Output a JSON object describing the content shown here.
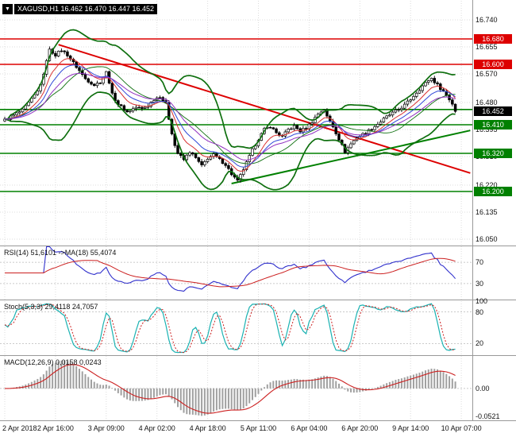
{
  "window": {
    "dropdown_icon": "▼"
  },
  "chart_data": [
    {
      "type": "candlestick",
      "symbol": "XAGUSD",
      "timeframe": "H1",
      "title": "XAGUSD,H1 16.462 16.470 16.447 16.452",
      "open": "16.462",
      "high": "16.470",
      "low": "16.447",
      "close": "16.452",
      "x_labels": [
        "2 Apr 2018",
        "2 Apr 16:00",
        "3 Apr 09:00",
        "4 Apr 02:00",
        "4 Apr 18:00",
        "5 Apr 11:00",
        "6 Apr 04:00",
        "6 Apr 20:00",
        "9 Apr 14:00",
        "10 Apr 07:00"
      ],
      "y_ticks": [
        "16.740",
        "16.655",
        "16.570",
        "16.480",
        "16.395",
        "16.310",
        "16.220",
        "16.135",
        "16.050"
      ],
      "y_range": [
        16.03,
        16.8
      ],
      "candle_count": 152,
      "noise_amplitude": 0.009,
      "wick_amplitude": 0.013,
      "current_price": 16.452,
      "current_price_text": "16.452",
      "close_path_anchors": [
        [
          0,
          16.425
        ],
        [
          3,
          16.44
        ],
        [
          6,
          16.455
        ],
        [
          9,
          16.49
        ],
        [
          11,
          16.515
        ],
        [
          13,
          16.565
        ],
        [
          14,
          16.615
        ],
        [
          15,
          16.645
        ],
        [
          17,
          16.63
        ],
        [
          19,
          16.645
        ],
        [
          21,
          16.63
        ],
        [
          23,
          16.605
        ],
        [
          25,
          16.58
        ],
        [
          27,
          16.555
        ],
        [
          30,
          16.535
        ],
        [
          32,
          16.545
        ],
        [
          34,
          16.575
        ],
        [
          35,
          16.545
        ],
        [
          36,
          16.505
        ],
        [
          38,
          16.475
        ],
        [
          41,
          16.45
        ],
        [
          44,
          16.465
        ],
        [
          46,
          16.46
        ],
        [
          48,
          16.47
        ],
        [
          50,
          16.49
        ],
        [
          52,
          16.5
        ],
        [
          54,
          16.475
        ],
        [
          55,
          16.43
        ],
        [
          56,
          16.385
        ],
        [
          57,
          16.345
        ],
        [
          58,
          16.32
        ],
        [
          60,
          16.3
        ],
        [
          62,
          16.325
        ],
        [
          64,
          16.305
        ],
        [
          66,
          16.28
        ],
        [
          68,
          16.305
        ],
        [
          70,
          16.315
        ],
        [
          72,
          16.3
        ],
        [
          74,
          16.285
        ],
        [
          76,
          16.255
        ],
        [
          78,
          16.232
        ],
        [
          79,
          16.25
        ],
        [
          81,
          16.29
        ],
        [
          83,
          16.33
        ],
        [
          85,
          16.365
        ],
        [
          87,
          16.395
        ],
        [
          89,
          16.405
        ],
        [
          91,
          16.385
        ],
        [
          93,
          16.372
        ],
        [
          95,
          16.395
        ],
        [
          97,
          16.405
        ],
        [
          99,
          16.39
        ],
        [
          101,
          16.4
        ],
        [
          103,
          16.42
        ],
        [
          105,
          16.445
        ],
        [
          107,
          16.458
        ],
        [
          108,
          16.435
        ],
        [
          110,
          16.405
        ],
        [
          112,
          16.365
        ],
        [
          114,
          16.325
        ],
        [
          116,
          16.35
        ],
        [
          118,
          16.37
        ],
        [
          120,
          16.38
        ],
        [
          122,
          16.392
        ],
        [
          124,
          16.405
        ],
        [
          126,
          16.42
        ],
        [
          128,
          16.435
        ],
        [
          130,
          16.447
        ],
        [
          132,
          16.458
        ],
        [
          134,
          16.472
        ],
        [
          136,
          16.49
        ],
        [
          138,
          16.512
        ],
        [
          140,
          16.532
        ],
        [
          142,
          16.55
        ],
        [
          143,
          16.556
        ],
        [
          145,
          16.535
        ],
        [
          147,
          16.515
        ],
        [
          149,
          16.49
        ],
        [
          151,
          16.462
        ],
        [
          152,
          16.452
        ]
      ],
      "levels": [
        {
          "price": 16.68,
          "label": "16.680",
          "color": "#dd0000"
        },
        {
          "price": 16.6,
          "label": "16.600",
          "color": "#dd0000"
        },
        {
          "price": 16.458,
          "label": "",
          "color": "#008000"
        },
        {
          "price": 16.41,
          "label": "16.410",
          "color": "#008000"
        },
        {
          "price": 16.32,
          "label": "16.320",
          "color": "#008000"
        },
        {
          "price": 16.2,
          "label": "16.200",
          "color": "#008000"
        }
      ],
      "trendlines": [
        {
          "from": [
            18,
            16.662
          ],
          "to": [
            156,
            16.258
          ],
          "color": "#dd0000",
          "width": 2
        },
        {
          "from": [
            76,
            16.225
          ],
          "to": [
            156,
            16.392
          ],
          "color": "#008000",
          "width": 2
        }
      ],
      "indicators_overlay": [
        {
          "name": "Bollinger Bands",
          "period": 20,
          "deviation": 2,
          "color": "#0e6f0e"
        },
        {
          "name": "MA fast",
          "period": 8,
          "color": "#d83030"
        },
        {
          "name": "MA mid",
          "period": 13,
          "color": "#3048d8"
        },
        {
          "name": "MA slow",
          "period": 21,
          "color": "#9030c0"
        }
      ]
    },
    {
      "type": "line",
      "name": "RSI",
      "label": "RSI(14) 51,6101  ->MA(18) 55,4074",
      "params": {
        "period": 14,
        "ma_period": 18
      },
      "current": {
        "rsi": "51,6101",
        "ma": "55,4074"
      },
      "y_ticks": [
        {
          "value": 70,
          "text": "70"
        },
        {
          "value": 30,
          "text": "30"
        }
      ],
      "range": [
        0,
        100
      ],
      "colors": {
        "rsi": "#3030cc",
        "ma": "#cc2020"
      }
    },
    {
      "type": "line",
      "name": "Stochastic",
      "label": "Stoch(5,3,3) 29,4118 24,7057",
      "params": {
        "k": 5,
        "d": 3,
        "slowing": 3
      },
      "current": {
        "k": "29,4118",
        "d": "24,7057"
      },
      "y_ticks": [
        {
          "value": 100,
          "text": "100"
        },
        {
          "value": 80,
          "text": "80"
        },
        {
          "value": 20,
          "text": "20"
        }
      ],
      "range": [
        0,
        100
      ],
      "colors": {
        "k": "#1ab2b2",
        "d": "#cc2020"
      }
    },
    {
      "type": "macd",
      "name": "MACD",
      "label": "MACD(12,26,9) 0,0158 0,0243",
      "params": {
        "fast": 12,
        "slow": 26,
        "signal": 9
      },
      "current": {
        "macd": "0,0158",
        "signal": "0,0243"
      },
      "y_ticks": [
        {
          "text": "0.00",
          "at": "zero"
        },
        {
          "text": "-0.0521",
          "at": "min"
        }
      ],
      "colors": {
        "histogram": "#a0a0a0",
        "signal": "#cc2020"
      }
    }
  ]
}
